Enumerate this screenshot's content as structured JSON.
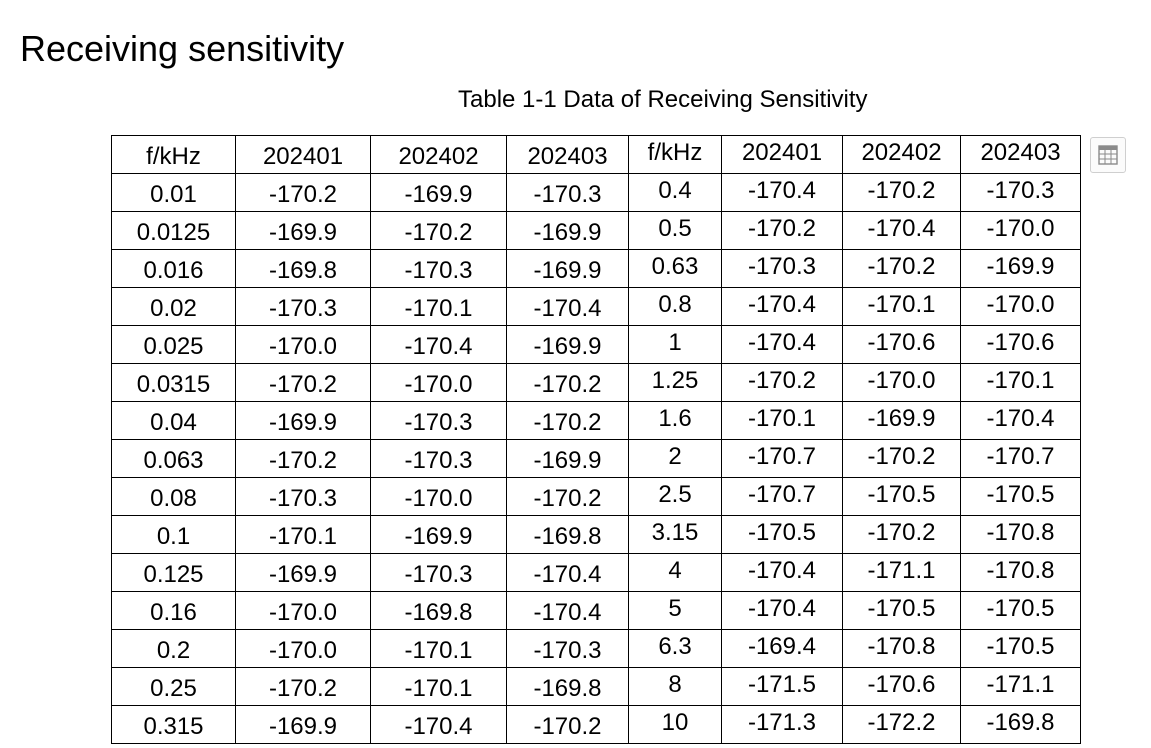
{
  "heading": "Receiving sensitivity",
  "caption": "Table 1-1 Data of Receiving Sensitivity",
  "table": {
    "header": [
      "f/kHz",
      "202401",
      "202402",
      "202403",
      "f/kHz",
      "202401",
      "202402",
      "202403"
    ],
    "rows": [
      [
        "0.01",
        "-170.2",
        "-169.9",
        "-170.3",
        "0.4",
        "-170.4",
        "-170.2",
        "-170.3"
      ],
      [
        "0.0125",
        "-169.9",
        "-170.2",
        "-169.9",
        "0.5",
        "-170.2",
        "-170.4",
        "-170.0"
      ],
      [
        "0.016",
        "-169.8",
        "-170.3",
        "-169.9",
        "0.63",
        "-170.3",
        "-170.2",
        "-169.9"
      ],
      [
        "0.02",
        "-170.3",
        "-170.1",
        "-170.4",
        "0.8",
        "-170.4",
        "-170.1",
        "-170.0"
      ],
      [
        "0.025",
        "-170.0",
        "-170.4",
        "-169.9",
        "1",
        "-170.4",
        "-170.6",
        "-170.6"
      ],
      [
        "0.0315",
        "-170.2",
        "-170.0",
        "-170.2",
        "1.25",
        "-170.2",
        "-170.0",
        "-170.1"
      ],
      [
        "0.04",
        "-169.9",
        "-170.3",
        "-170.2",
        "1.6",
        "-170.1",
        "-169.9",
        "-170.4"
      ],
      [
        "0.063",
        "-170.2",
        "-170.3",
        "-169.9",
        "2",
        "-170.7",
        "-170.2",
        "-170.7"
      ],
      [
        "0.08",
        "-170.3",
        "-170.0",
        "-170.2",
        "2.5",
        "-170.7",
        "-170.5",
        "-170.5"
      ],
      [
        "0.1",
        "-170.1",
        "-169.9",
        "-169.8",
        "3.15",
        "-170.5",
        "-170.2",
        "-170.8"
      ],
      [
        "0.125",
        "-169.9",
        "-170.3",
        "-170.4",
        "4",
        "-170.4",
        "-171.1",
        "-170.8"
      ],
      [
        "0.16",
        "-170.0",
        "-169.8",
        "-170.4",
        "5",
        "-170.4",
        "-170.5",
        "-170.5"
      ],
      [
        "0.2",
        "-170.0",
        "-170.1",
        "-170.3",
        "6.3",
        "-169.4",
        "-170.8",
        "-170.5"
      ],
      [
        "0.25",
        "-170.2",
        "-170.1",
        "-169.8",
        "8",
        "-171.5",
        "-170.6",
        "-171.1"
      ],
      [
        "0.315",
        "-169.9",
        "-170.4",
        "-170.2",
        "10",
        "-171.3",
        "-172.2",
        "-169.8"
      ]
    ]
  },
  "icons": {
    "table_widget": "table-grid-icon"
  }
}
